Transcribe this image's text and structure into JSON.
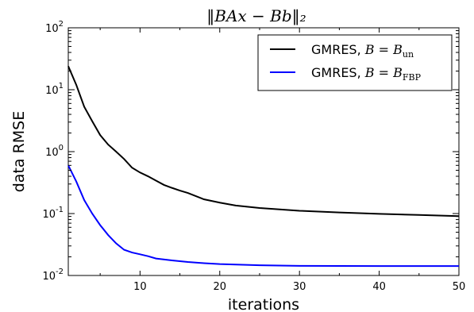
{
  "chart_data": {
    "type": "line",
    "title": "‖BAx − Bb‖₂",
    "xlabel": "iterations",
    "ylabel": "data RMSE",
    "xlim": [
      1,
      50
    ],
    "ylim": [
      0.01,
      100
    ],
    "yscale": "log",
    "grid": false,
    "legend_position": "top-right",
    "x_ticks": [
      10,
      20,
      30,
      40,
      50
    ],
    "y_ticks": [
      {
        "value": 0.01,
        "base": "10",
        "exp": "-2"
      },
      {
        "value": 0.1,
        "base": "10",
        "exp": "-1"
      },
      {
        "value": 1,
        "base": "10",
        "exp": "0"
      },
      {
        "value": 10,
        "base": "10",
        "exp": "1"
      },
      {
        "value": 100,
        "base": "10",
        "exp": "2"
      }
    ],
    "series": [
      {
        "name": "GMRES, B = B_un",
        "legend_prefix": "GMRES,",
        "legend_math": "B = B",
        "legend_sub": "un",
        "color": "#000000",
        "x": [
          1,
          2,
          3,
          4,
          5,
          6,
          7,
          8,
          9,
          10,
          11,
          12,
          13,
          14,
          15,
          16,
          18,
          20,
          22,
          25,
          30,
          35,
          40,
          45,
          50
        ],
        "y": [
          24,
          12,
          5.3,
          3.1,
          1.85,
          1.3,
          1.0,
          0.76,
          0.55,
          0.46,
          0.4,
          0.34,
          0.29,
          0.26,
          0.235,
          0.215,
          0.17,
          0.15,
          0.135,
          0.123,
          0.111,
          0.104,
          0.099,
          0.095,
          0.091
        ]
      },
      {
        "name": "GMRES, B = B_FBP",
        "legend_prefix": "GMRES,",
        "legend_math": "B = B",
        "legend_sub": "FBP",
        "color": "#0000ff",
        "x": [
          1,
          2,
          3,
          4,
          5,
          6,
          7,
          8,
          9,
          10,
          11,
          12,
          14,
          16,
          18,
          20,
          25,
          30,
          40,
          50
        ],
        "y": [
          0.6,
          0.33,
          0.165,
          0.1,
          0.065,
          0.045,
          0.033,
          0.026,
          0.0235,
          0.022,
          0.0205,
          0.0188,
          0.0175,
          0.0165,
          0.0158,
          0.0153,
          0.0146,
          0.0143,
          0.0142,
          0.0142
        ]
      }
    ]
  }
}
